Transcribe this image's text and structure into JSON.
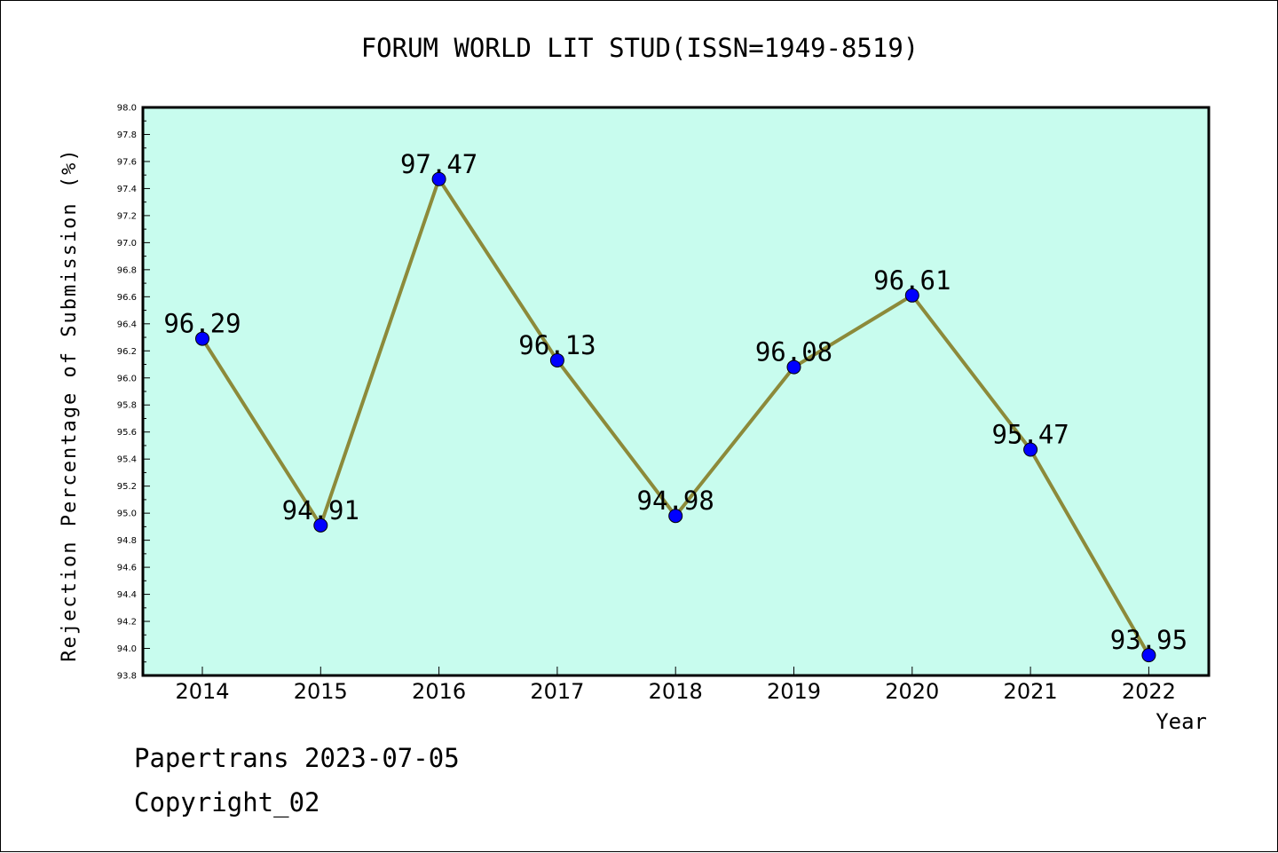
{
  "chart_data": {
    "type": "line",
    "title": "FORUM WORLD LIT STUD(ISSN=1949-8519)",
    "xlabel": "Year",
    "ylabel": "Rejection Percentage of Submission (%)",
    "categories": [
      "2014",
      "2015",
      "2016",
      "2017",
      "2018",
      "2019",
      "2020",
      "2021",
      "2022"
    ],
    "series": [
      {
        "values": [
          96.29,
          94.91,
          97.47,
          96.13,
          94.98,
          96.08,
          96.61,
          95.47,
          93.95
        ]
      }
    ],
    "data_labels": [
      "96.29",
      "94.91",
      "97.47",
      "96.13",
      "94.98",
      "96.08",
      "96.61",
      "95.47",
      "93.95"
    ],
    "ylim": [
      93.8,
      98.0
    ],
    "yticks": [
      "93.8",
      "94.0",
      "94.2",
      "94.4",
      "94.6",
      "94.8",
      "95.0",
      "95.2",
      "95.4",
      "95.6",
      "95.8",
      "96.0",
      "96.2",
      "96.4",
      "96.6",
      "96.8",
      "97.0",
      "97.2",
      "97.4",
      "97.6",
      "97.8",
      "98.0"
    ],
    "grid": false,
    "colors": {
      "plot_background": "#c8fcee",
      "line": "#8c8a3a",
      "marker": "#0000ff"
    }
  },
  "footer": {
    "line1": "Papertrans 2023-07-05",
    "line2": "Copyright_02"
  }
}
